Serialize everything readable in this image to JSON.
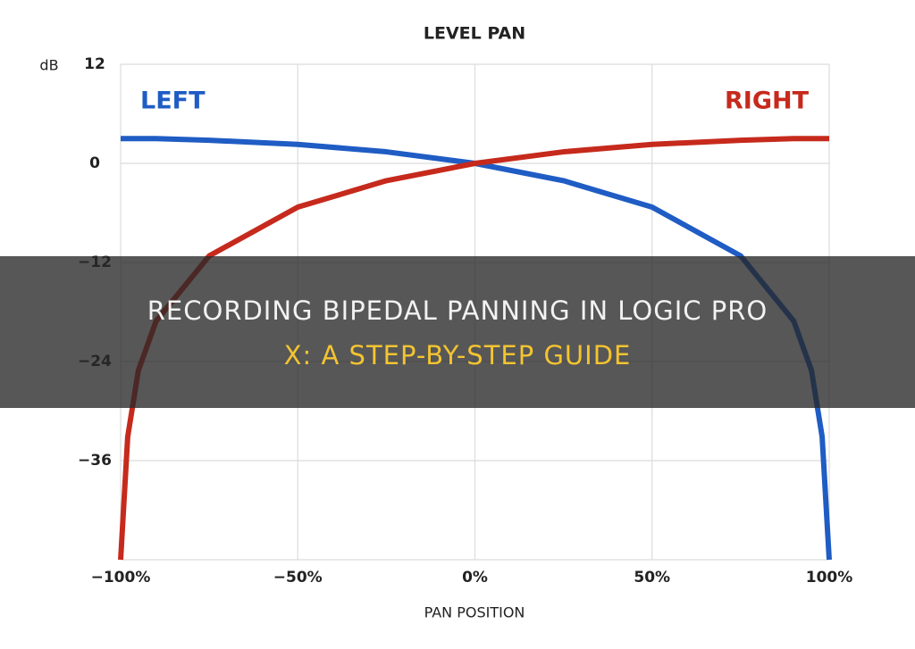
{
  "chart_data": {
    "type": "line",
    "title": "LEVEL PAN",
    "y_label": "dB",
    "x_label": "PAN POSITION",
    "x": [
      -100,
      -98,
      -95,
      -90,
      -75,
      -50,
      -25,
      0,
      25,
      50,
      75,
      90,
      95,
      98,
      100
    ],
    "series": [
      {
        "name": "LEFT",
        "color": "#1f5cc4",
        "values": [
          3.0,
          3.0,
          3.0,
          3.0,
          2.8,
          2.3,
          1.4,
          0,
          -2.1,
          -5.3,
          -11.2,
          -19.1,
          -25.1,
          -33.1,
          -48
        ]
      },
      {
        "name": "RIGHT",
        "color": "#c62a1c",
        "values": [
          -48,
          -33.1,
          -25.1,
          -19.1,
          -11.2,
          -5.3,
          -2.1,
          0,
          1.4,
          2.3,
          2.8,
          3.0,
          3.0,
          3.0,
          3.0
        ]
      }
    ],
    "xlim": [
      -100,
      100
    ],
    "xticks": [
      {
        "value": -100,
        "label": "−100%"
      },
      {
        "value": -50,
        "label": "−50%"
      },
      {
        "value": 0,
        "label": "0%"
      },
      {
        "value": 50,
        "label": "50%"
      },
      {
        "value": 100,
        "label": "100%"
      }
    ],
    "ylim": [
      -48,
      12
    ],
    "yticks": [
      12,
      0,
      {
        "value": -12,
        "label": "−12"
      },
      {
        "value": -24,
        "label": "−24"
      },
      {
        "value": -36,
        "label": "−36"
      }
    ],
    "grid": true
  },
  "banner": {
    "lines": [
      "RECORDING BIPEDAL PANNING IN LOGIC PRO",
      "X: A STEP-BY-STEP GUIDE"
    ]
  }
}
